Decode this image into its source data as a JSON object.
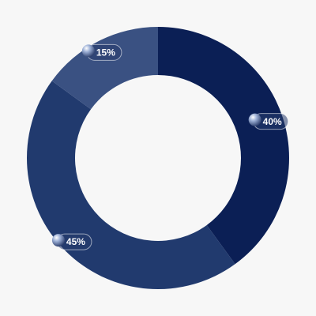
{
  "chart_data": {
    "type": "pie",
    "values": [
      40,
      45,
      15
    ],
    "value_labels": [
      "40%",
      "45%",
      "15%"
    ],
    "colors": [
      "#0b1f55",
      "#213a6e",
      "#3a5182"
    ]
  }
}
